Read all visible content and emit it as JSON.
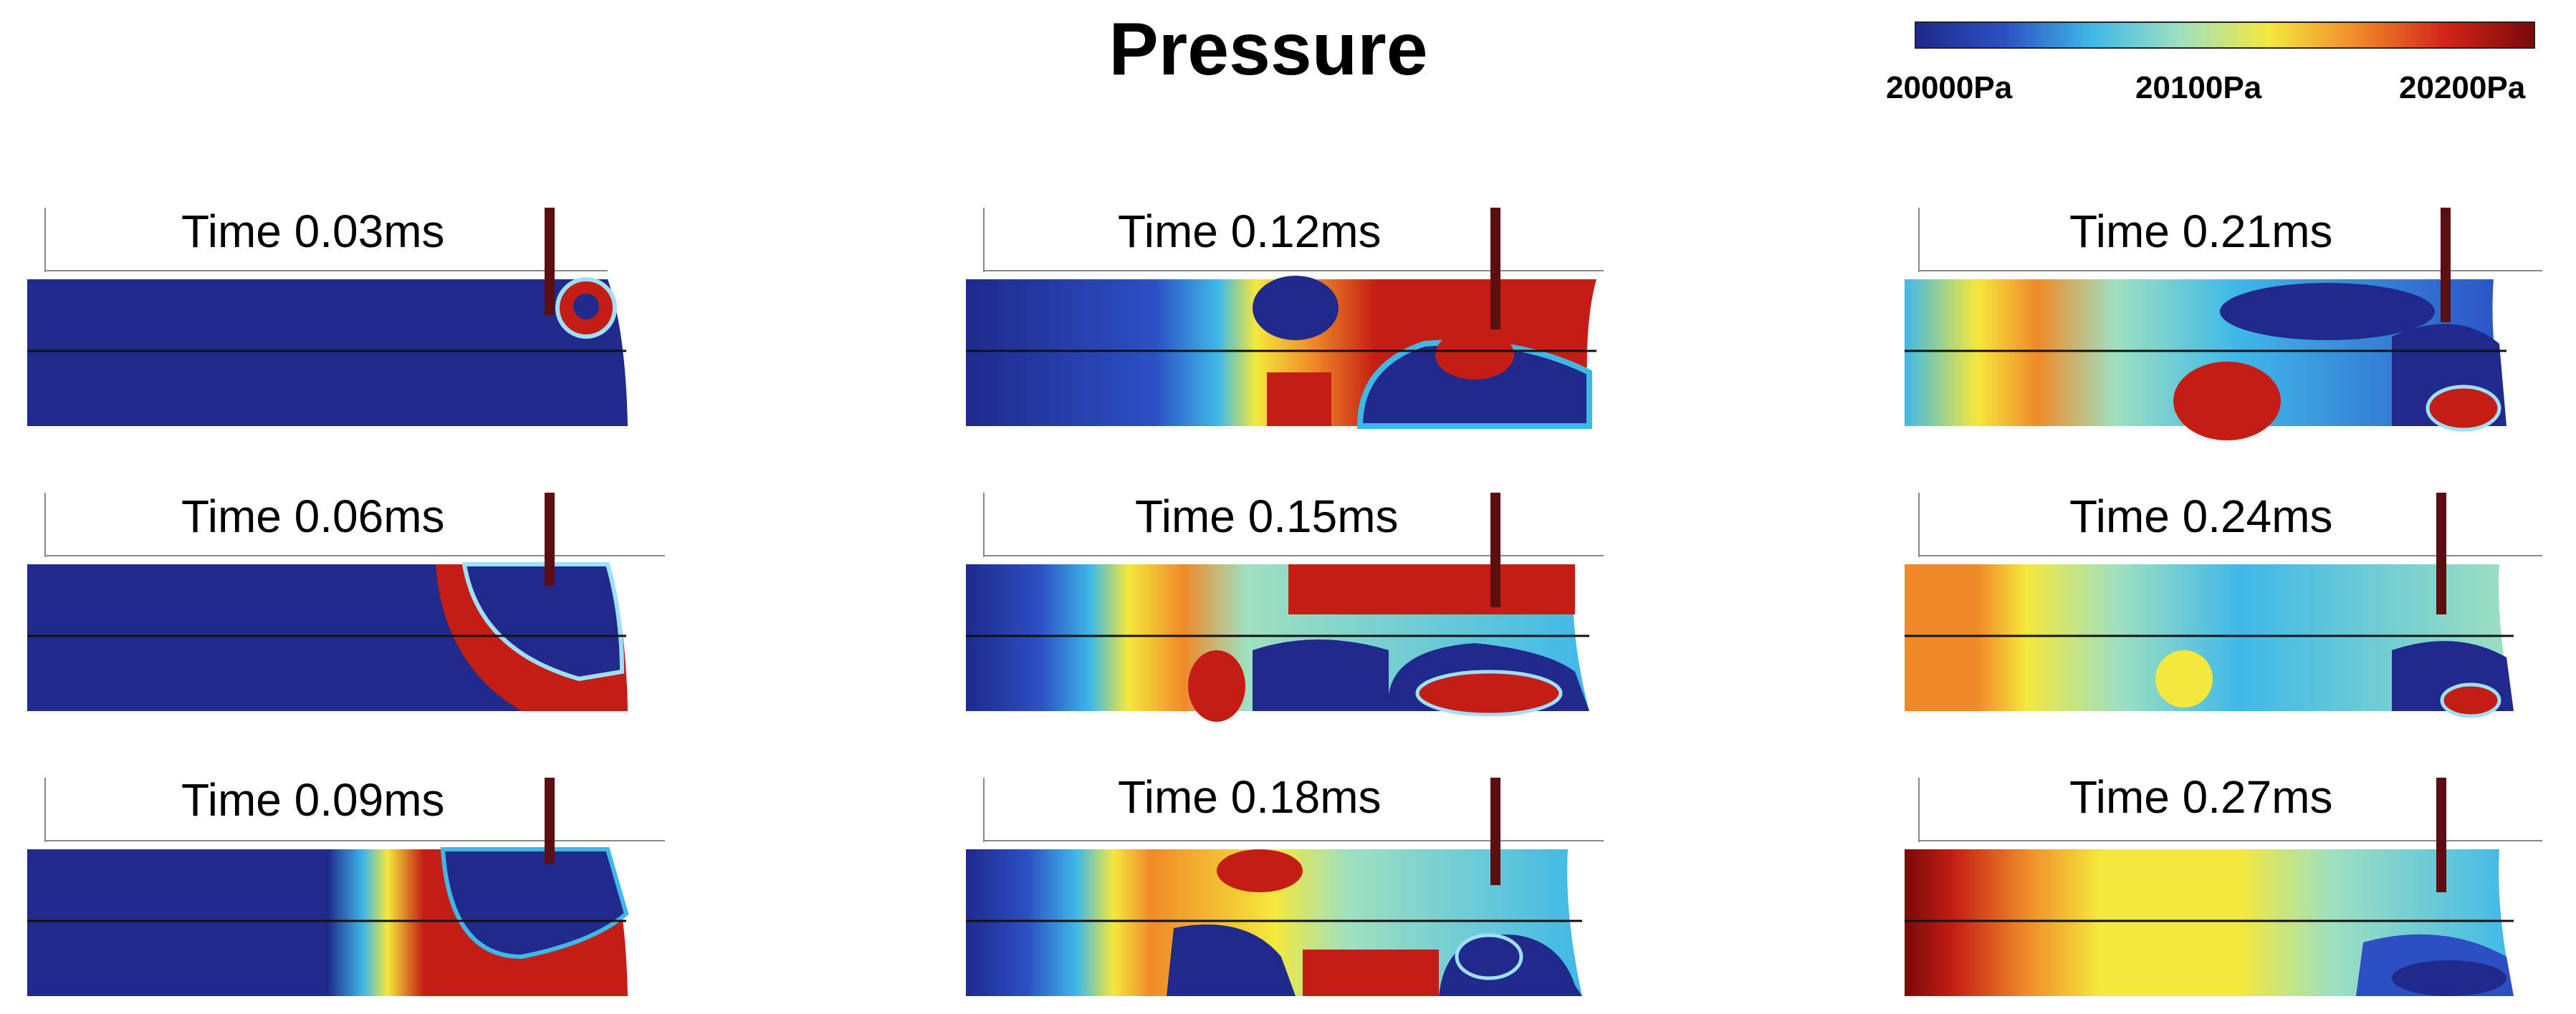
{
  "title": "Pressure",
  "colorbar": {
    "colors": [
      "#1e2a8a",
      "#2c50c4",
      "#3fb8e8",
      "#9fe0c0",
      "#f4e83c",
      "#f08a28",
      "#d42418",
      "#7a0a0a"
    ],
    "ticks": [
      "20000Pa",
      "20100Pa",
      "20200Pa"
    ]
  },
  "panels": [
    {
      "label": "Time 0.03ms"
    },
    {
      "label": "Time 0.12ms"
    },
    {
      "label": "Time 0.21ms"
    },
    {
      "label": "Time 0.06ms"
    },
    {
      "label": "Time 0.15ms"
    },
    {
      "label": "Time 0.24ms"
    },
    {
      "label": "Time 0.09ms"
    },
    {
      "label": "Time 0.18ms"
    },
    {
      "label": "Time 0.27ms"
    }
  ]
}
